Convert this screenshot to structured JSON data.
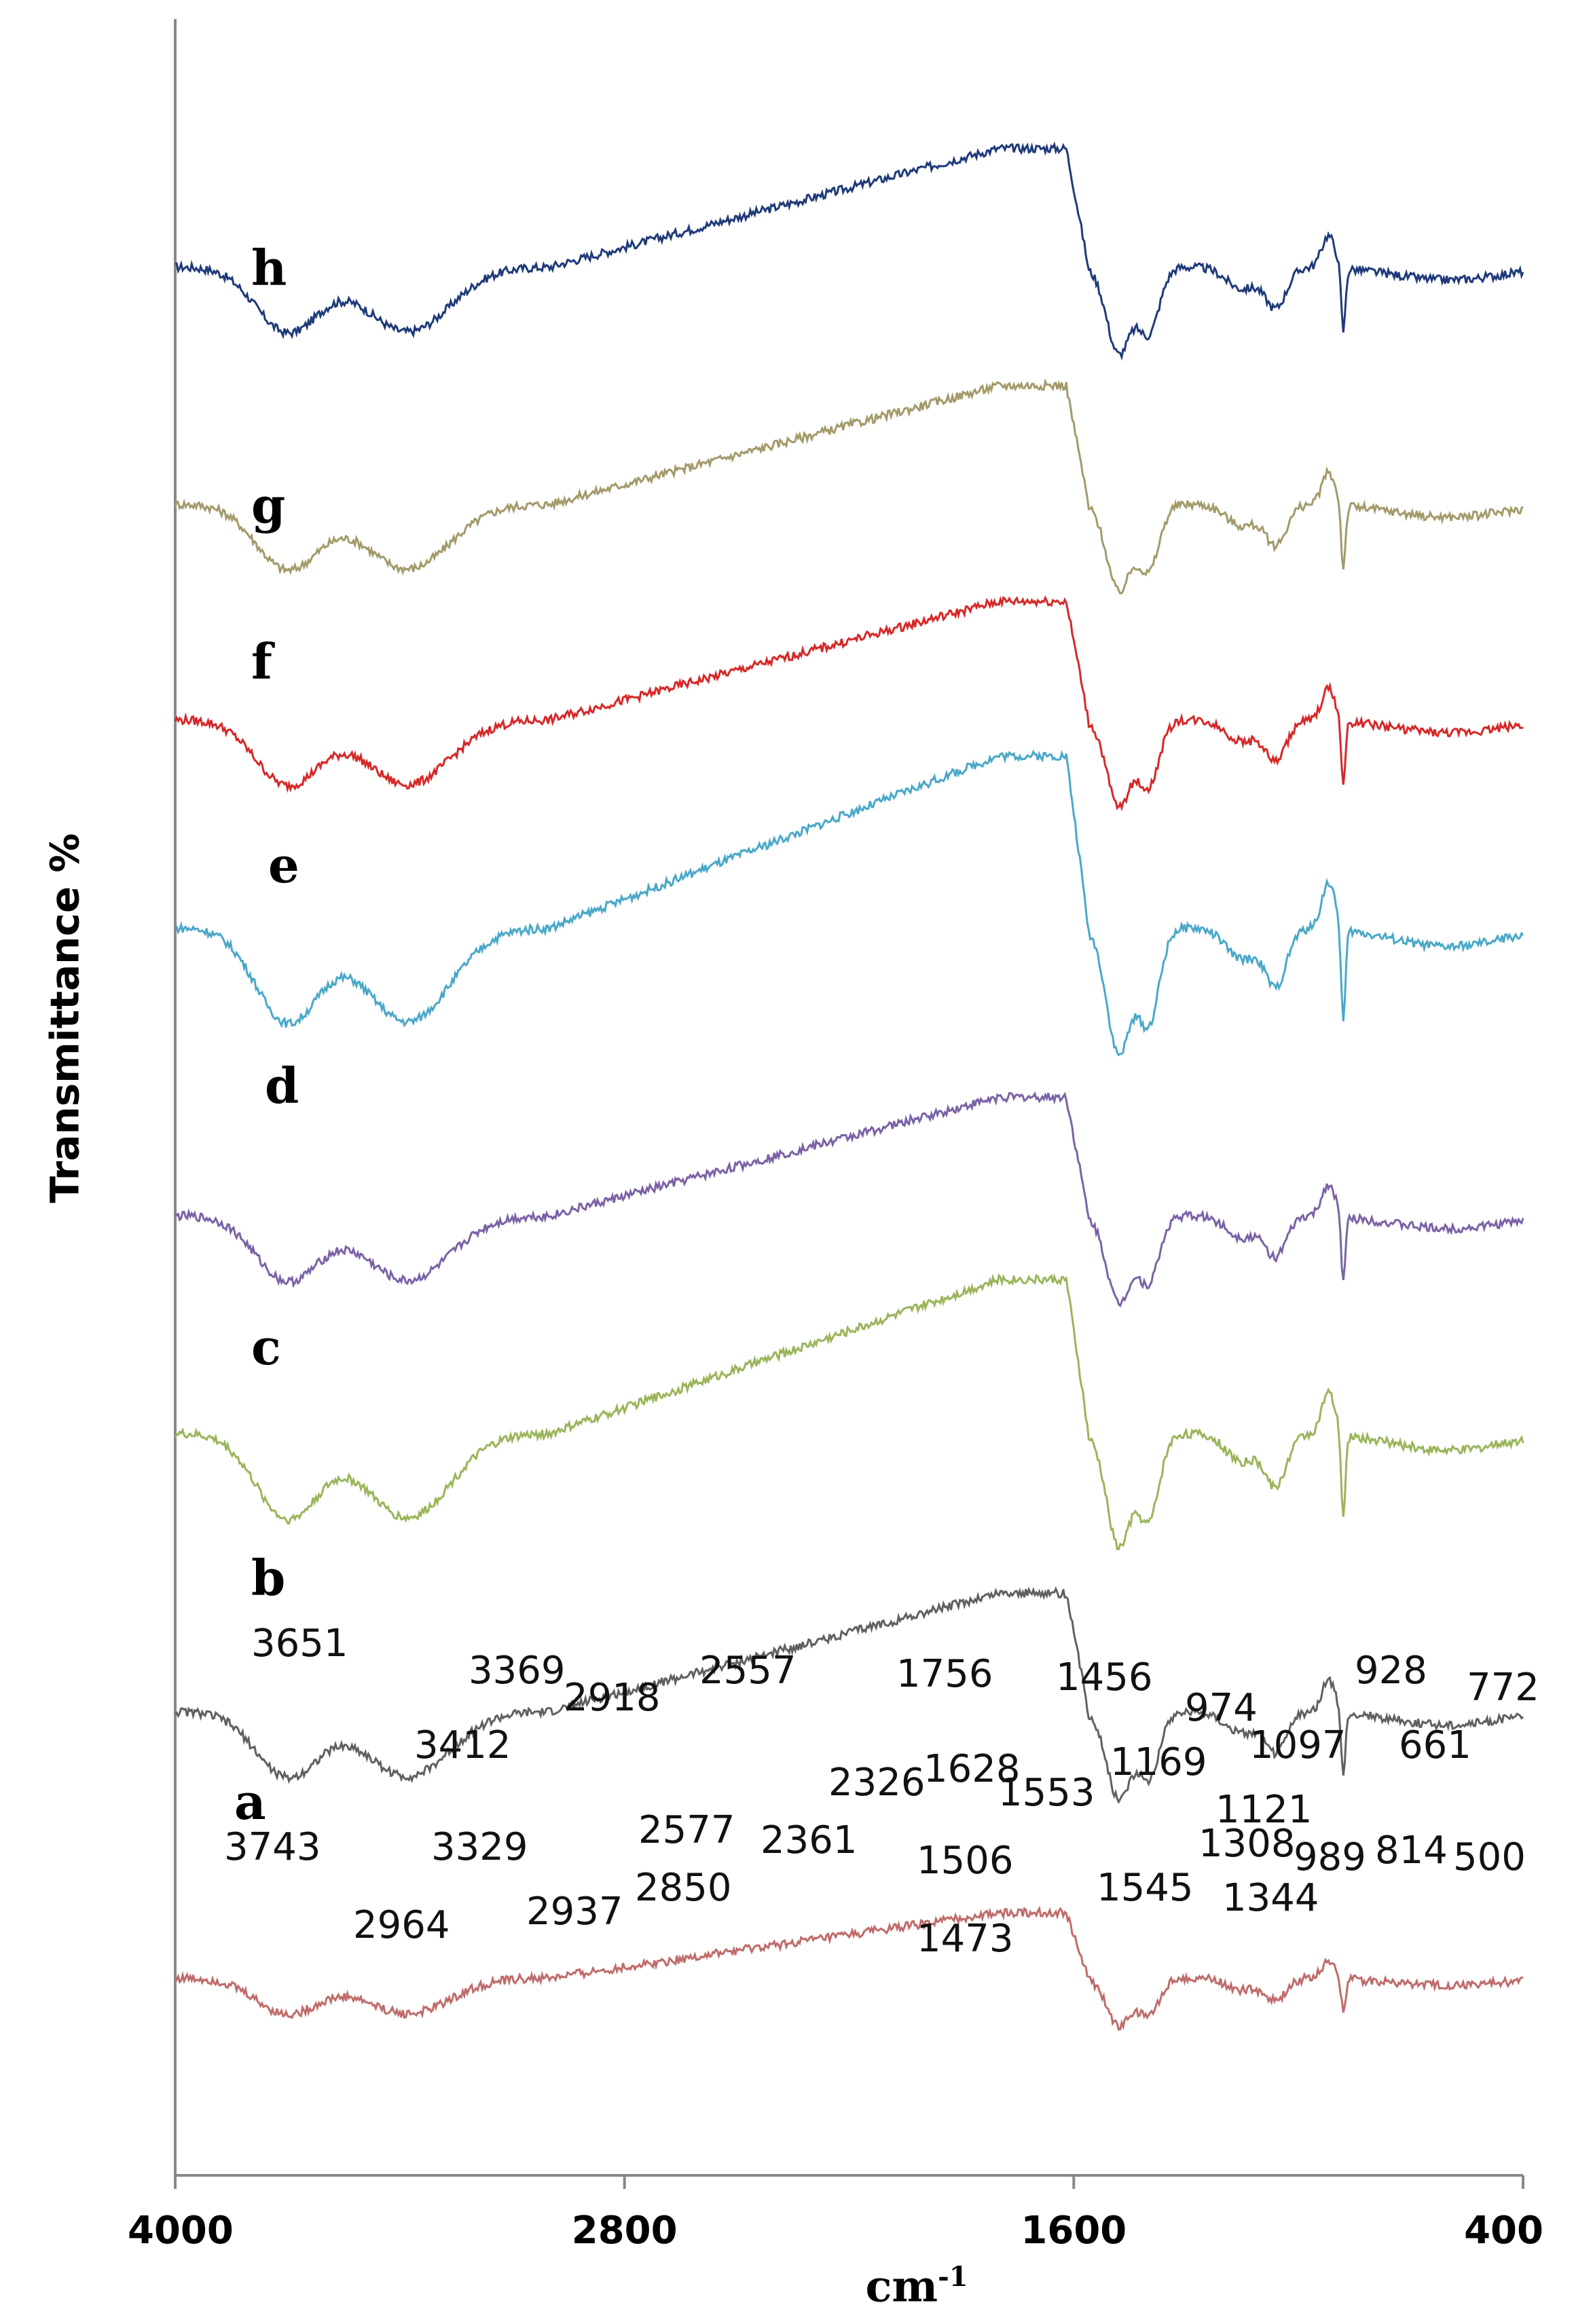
{
  "chart_data": {
    "type": "line",
    "title": "",
    "xlabel": "cm",
    "xlabel_sup": "-1",
    "ylabel": "Transmittance %",
    "xlim": [
      4000,
      400
    ],
    "x_ticks": [
      4000,
      2800,
      1600,
      400
    ],
    "x_tick_labels": [
      "4000",
      "2800",
      "1600",
      "400"
    ],
    "grid": false,
    "series": [
      {
        "name": "h",
        "label": "h",
        "color": "#1f3a7a",
        "offset": 0.855,
        "scale": 1.0
      },
      {
        "name": "g",
        "label": "g",
        "color": "#a39a6a",
        "offset": 0.745,
        "scale": 1.0
      },
      {
        "name": "f",
        "label": "f",
        "color": "#d62828",
        "offset": 0.645,
        "scale": 1.0
      },
      {
        "name": "e",
        "label": "e",
        "color": "#4aa8c8",
        "offset": 0.535,
        "scale": 1.45
      },
      {
        "name": "d",
        "label": "d",
        "color": "#7b62a6",
        "offset": 0.415,
        "scale": 1.0
      },
      {
        "name": "c",
        "label": "c",
        "color": "#9ab55a",
        "offset": 0.305,
        "scale": 1.3
      },
      {
        "name": "b",
        "label": "b",
        "color": "#606060",
        "offset": 0.185,
        "scale": 1.0
      },
      {
        "name": "a",
        "label": "a",
        "color": "#c06b6b",
        "offset": 0.075,
        "scale": 0.55
      }
    ],
    "curve_labels": [
      "h",
      "g",
      "f",
      "e",
      "d",
      "c",
      "b",
      "a"
    ],
    "peak_annotations": [
      "3651",
      "3743",
      "3369",
      "3412",
      "3329",
      "2918",
      "2557",
      "2964",
      "2937",
      "2850",
      "2577",
      "2361",
      "2326",
      "1756",
      "1456",
      "1628",
      "1553",
      "1506",
      "1473",
      "1545",
      "1169",
      "1308",
      "1344",
      "974",
      "1097",
      "1121",
      "989",
      "928",
      "772",
      "661",
      "814",
      "500"
    ]
  }
}
